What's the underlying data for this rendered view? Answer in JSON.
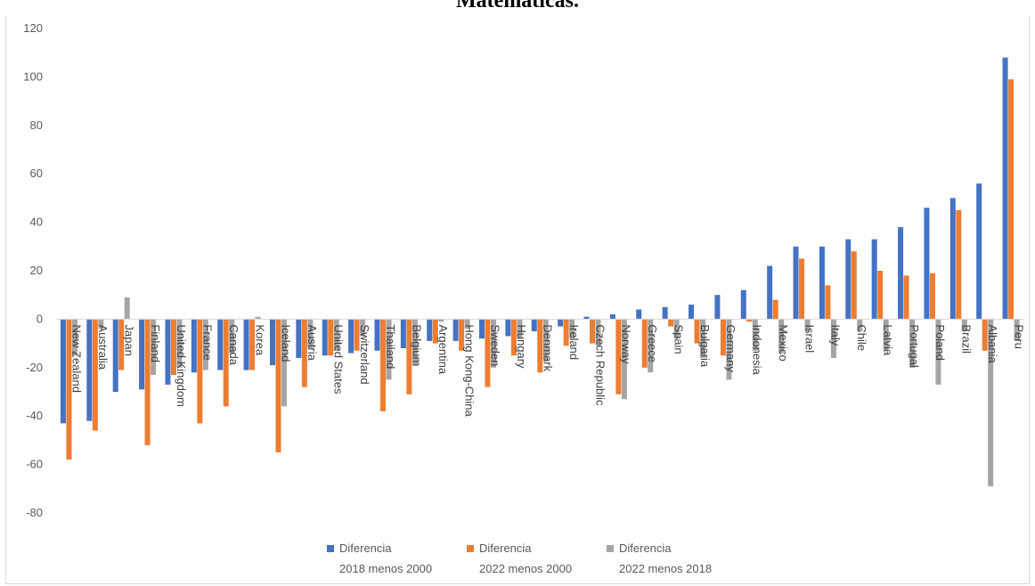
{
  "chart_data": {
    "type": "bar",
    "title": "Matemáticas.",
    "ylim": [
      -80,
      120
    ],
    "yticks": [
      120,
      100,
      80,
      60,
      40,
      20,
      0,
      -20,
      -40,
      -60,
      -80
    ],
    "grid": false,
    "legend_position": "bottom",
    "categories": [
      "New Zealand",
      "Australia",
      "Japan",
      "Finland",
      "United Kingdom",
      "France",
      "Canada",
      "Korea",
      "Iceland",
      "Austria",
      "United States",
      "Switzerland",
      "Thailand",
      "Belgium",
      "Argentina",
      "Hong Kong-China",
      "Sweden",
      "Hungary",
      "Denmark",
      "Ireland",
      "Czech Republic",
      "Norway",
      "Greece",
      "Spain",
      "Bulgaria",
      "Germany",
      "Indonesia",
      "Mexico",
      "Israel",
      "Italy",
      "Chile",
      "Latvia",
      "Portugal",
      "Poland",
      "Brazil",
      "Albania",
      "Peru"
    ],
    "series": [
      {
        "name": "Diferencia 2018 menos 2000",
        "color": "#4472c4",
        "values": [
          -43,
          -42,
          -30,
          -29,
          -27,
          -22,
          -21,
          -21,
          -19,
          -16,
          -15,
          -14,
          -13,
          -12,
          -9,
          -9,
          -8,
          -7,
          -5,
          -3,
          1,
          2,
          4,
          5,
          6,
          10,
          12,
          22,
          30,
          30,
          33,
          33,
          38,
          46,
          50,
          56,
          108
        ]
      },
      {
        "name": "Diferencia 2022 menos 2000",
        "color": "#ed7d31",
        "values": [
          -58,
          -46,
          -21,
          -52,
          -23,
          -43,
          -36,
          -21,
          -55,
          -28,
          -15,
          -13,
          -38,
          -31,
          -10,
          -13,
          -28,
          -15,
          -22,
          -11,
          -10,
          -31,
          -20,
          -3,
          -10,
          -15,
          -1,
          8,
          25,
          14,
          28,
          20,
          18,
          19,
          45,
          -13,
          99
        ]
      },
      {
        "name": "Diferencia 2022 menos 2018",
        "color": "#a5a5a5",
        "values": [
          -15,
          -4,
          9,
          -23,
          -20,
          -21,
          -14,
          1,
          -36,
          -12,
          -13,
          -7,
          -25,
          -19,
          -1,
          -4,
          -20,
          -8,
          -17,
          -8,
          -11,
          -33,
          -22,
          -8,
          -16,
          -25,
          -13,
          -14,
          -5,
          -16,
          -5,
          -13,
          -20,
          -27,
          -5,
          -69,
          -9
        ]
      }
    ]
  }
}
